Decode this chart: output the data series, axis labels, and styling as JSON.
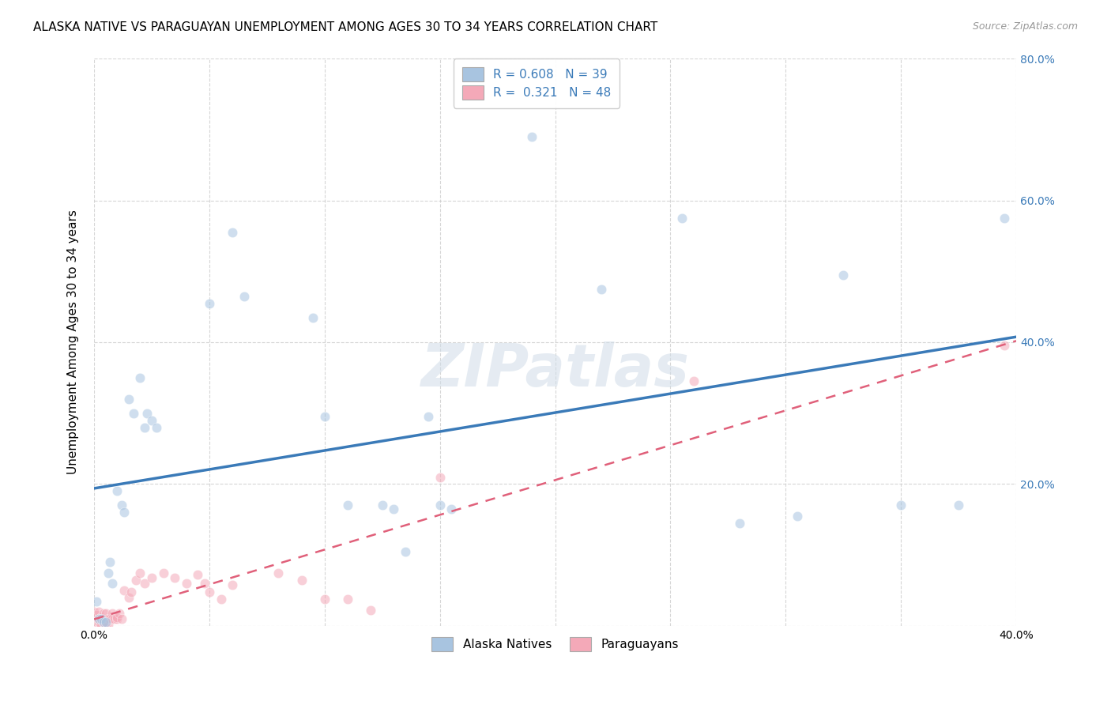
{
  "title": "ALASKA NATIVE VS PARAGUAYAN UNEMPLOYMENT AMONG AGES 30 TO 34 YEARS CORRELATION CHART",
  "source": "Source: ZipAtlas.com",
  "ylabel": "Unemployment Among Ages 30 to 34 years",
  "xlim": [
    0.0,
    0.4
  ],
  "ylim": [
    0.0,
    0.8
  ],
  "xticks": [
    0.0,
    0.05,
    0.1,
    0.15,
    0.2,
    0.25,
    0.3,
    0.35,
    0.4
  ],
  "yticks": [
    0.0,
    0.2,
    0.4,
    0.6,
    0.8
  ],
  "blue_R": 0.608,
  "blue_N": 39,
  "pink_R": 0.321,
  "pink_N": 48,
  "blue_color": "#a8c4e0",
  "blue_line_color": "#3a7ab8",
  "pink_color": "#f4a9b8",
  "pink_line_color": "#e0607a",
  "legend_label_blue": "Alaska Natives",
  "legend_label_pink": "Paraguayans",
  "blue_points": [
    [
      0.001,
      0.035
    ],
    [
      0.002,
      0.01
    ],
    [
      0.003,
      0.01
    ],
    [
      0.004,
      0.005
    ],
    [
      0.005,
      0.005
    ],
    [
      0.006,
      0.075
    ],
    [
      0.007,
      0.09
    ],
    [
      0.008,
      0.06
    ],
    [
      0.01,
      0.19
    ],
    [
      0.012,
      0.17
    ],
    [
      0.013,
      0.16
    ],
    [
      0.015,
      0.32
    ],
    [
      0.017,
      0.3
    ],
    [
      0.02,
      0.35
    ],
    [
      0.022,
      0.28
    ],
    [
      0.023,
      0.3
    ],
    [
      0.025,
      0.29
    ],
    [
      0.027,
      0.28
    ],
    [
      0.05,
      0.455
    ],
    [
      0.06,
      0.555
    ],
    [
      0.065,
      0.465
    ],
    [
      0.095,
      0.435
    ],
    [
      0.1,
      0.295
    ],
    [
      0.11,
      0.17
    ],
    [
      0.125,
      0.17
    ],
    [
      0.13,
      0.165
    ],
    [
      0.135,
      0.105
    ],
    [
      0.145,
      0.295
    ],
    [
      0.15,
      0.17
    ],
    [
      0.155,
      0.165
    ],
    [
      0.19,
      0.69
    ],
    [
      0.22,
      0.475
    ],
    [
      0.255,
      0.575
    ],
    [
      0.28,
      0.145
    ],
    [
      0.305,
      0.155
    ],
    [
      0.325,
      0.495
    ],
    [
      0.35,
      0.17
    ],
    [
      0.375,
      0.17
    ],
    [
      0.395,
      0.575
    ]
  ],
  "pink_points": [
    [
      0.0,
      0.02
    ],
    [
      0.001,
      0.015
    ],
    [
      0.001,
      0.005
    ],
    [
      0.002,
      0.005
    ],
    [
      0.002,
      0.01
    ],
    [
      0.002,
      0.02
    ],
    [
      0.003,
      0.01
    ],
    [
      0.003,
      0.012
    ],
    [
      0.003,
      0.002
    ],
    [
      0.004,
      0.01
    ],
    [
      0.004,
      0.005
    ],
    [
      0.004,
      0.018
    ],
    [
      0.005,
      0.002
    ],
    [
      0.005,
      0.01
    ],
    [
      0.005,
      0.018
    ],
    [
      0.006,
      0.01
    ],
    [
      0.006,
      0.002
    ],
    [
      0.007,
      0.01
    ],
    [
      0.008,
      0.018
    ],
    [
      0.008,
      0.01
    ],
    [
      0.009,
      0.01
    ],
    [
      0.01,
      0.01
    ],
    [
      0.01,
      0.012
    ],
    [
      0.011,
      0.018
    ],
    [
      0.012,
      0.01
    ],
    [
      0.013,
      0.05
    ],
    [
      0.015,
      0.04
    ],
    [
      0.016,
      0.048
    ],
    [
      0.018,
      0.065
    ],
    [
      0.02,
      0.075
    ],
    [
      0.022,
      0.06
    ],
    [
      0.025,
      0.068
    ],
    [
      0.03,
      0.075
    ],
    [
      0.035,
      0.068
    ],
    [
      0.04,
      0.06
    ],
    [
      0.045,
      0.072
    ],
    [
      0.048,
      0.06
    ],
    [
      0.05,
      0.048
    ],
    [
      0.055,
      0.038
    ],
    [
      0.06,
      0.058
    ],
    [
      0.08,
      0.075
    ],
    [
      0.09,
      0.065
    ],
    [
      0.1,
      0.038
    ],
    [
      0.11,
      0.038
    ],
    [
      0.12,
      0.022
    ],
    [
      0.15,
      0.21
    ],
    [
      0.26,
      0.345
    ],
    [
      0.395,
      0.395
    ]
  ],
  "watermark_text": "ZIPatlas",
  "bg_color": "#ffffff",
  "grid_color": "#cccccc",
  "title_fontsize": 11,
  "axis_label_fontsize": 11,
  "tick_fontsize": 10,
  "tick_color_right": "#3a7ab8",
  "scatter_size": 80,
  "scatter_alpha": 0.55,
  "scatter_edge_width": 0.5
}
